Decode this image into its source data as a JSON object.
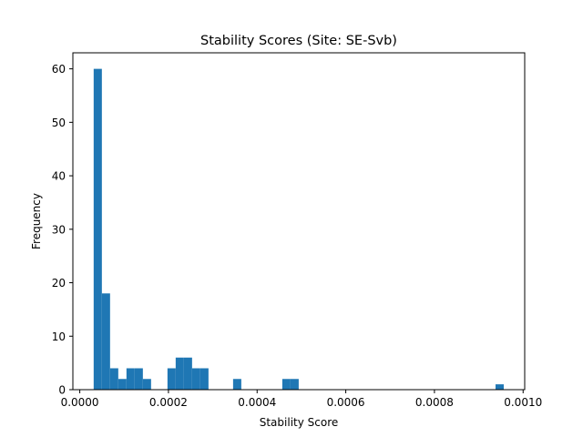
{
  "chart_data": {
    "type": "bar",
    "title": "Stability Scores (Site: SE-Svb)",
    "xlabel": "Stability Score",
    "ylabel": "Frequency",
    "xlim": [
      -1.56e-05,
      0.0010036
    ],
    "ylim": [
      0,
      63
    ],
    "xticks": [
      0.0,
      0.0002,
      0.0004,
      0.0006,
      0.0008,
      0.001
    ],
    "xtick_labels": [
      "0.0000",
      "0.0002",
      "0.0004",
      "0.0006",
      "0.0008",
      "0.0010"
    ],
    "yticks": [
      0,
      10,
      20,
      30,
      40,
      50,
      60
    ],
    "ytick_labels": [
      "0",
      "10",
      "20",
      "30",
      "40",
      "50",
      "60"
    ],
    "bin_start": 3.13e-05,
    "bin_width": 1.85e-05,
    "counts": [
      60,
      18,
      4,
      2,
      4,
      4,
      2,
      0,
      0,
      4,
      6,
      6,
      4,
      4,
      0,
      0,
      0,
      2,
      0,
      0,
      0,
      0,
      0,
      2,
      2,
      0,
      0,
      0,
      0,
      0,
      0,
      0,
      0,
      0,
      0,
      0,
      0,
      0,
      0,
      0,
      0,
      0,
      0,
      0,
      0,
      0,
      0,
      0,
      0,
      1
    ],
    "bar_color": "#1f77b4",
    "grid": false,
    "legend": "none"
  }
}
